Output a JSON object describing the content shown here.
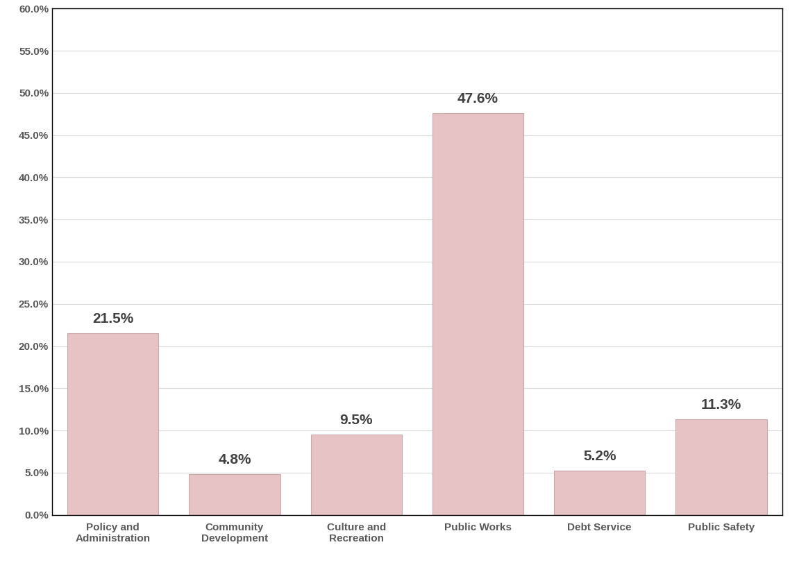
{
  "chart_data": {
    "type": "bar",
    "categories": [
      "Policy and Administration",
      "Community Development",
      "Culture and Recreation",
      "Public Works",
      "Debt Service",
      "Public Safety"
    ],
    "values": [
      21.5,
      4.8,
      9.5,
      47.6,
      5.2,
      11.3
    ],
    "value_labels": [
      "21.5%",
      "4.8%",
      "9.5%",
      "47.6%",
      "5.2%",
      "11.3%"
    ],
    "data_labels": true,
    "color": "#e7c3c6",
    "ylim": [
      0,
      60
    ],
    "yticks": [
      {
        "value": 0,
        "label": "0.0%"
      },
      {
        "value": 5,
        "label": "5.0%"
      },
      {
        "value": 10,
        "label": "10.0%"
      },
      {
        "value": 15,
        "label": "15.0%"
      },
      {
        "value": 20,
        "label": "20.0%"
      },
      {
        "value": 25,
        "label": "25.0%"
      },
      {
        "value": 30,
        "label": "30.0%"
      },
      {
        "value": 35,
        "label": "35.0%"
      },
      {
        "value": 40,
        "label": "40.0%"
      },
      {
        "value": 45,
        "label": "45.0%"
      },
      {
        "value": 50,
        "label": "50.0%"
      },
      {
        "value": 55,
        "label": "55.0%"
      },
      {
        "value": 60,
        "label": "60.0%"
      }
    ],
    "grid": true
  }
}
